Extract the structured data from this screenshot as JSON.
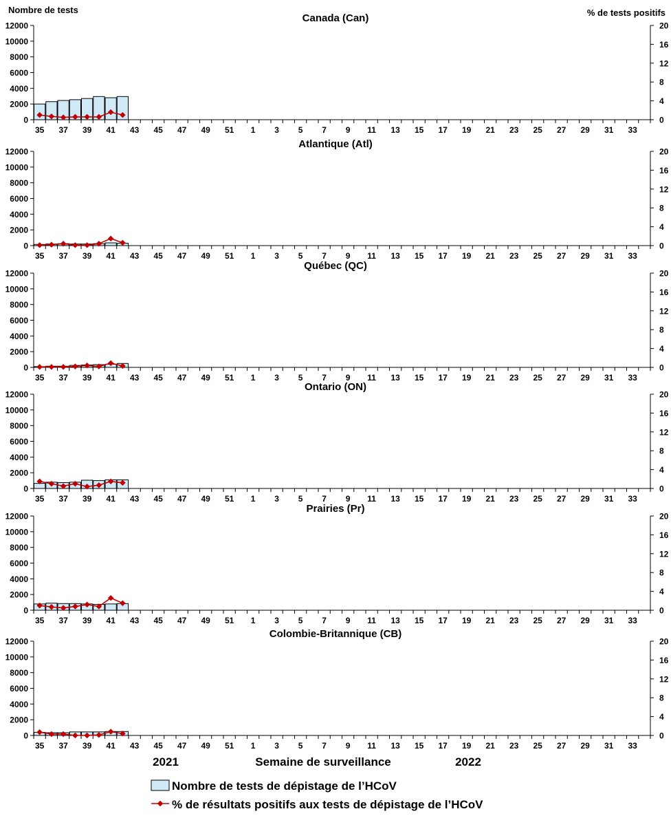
{
  "labels": {
    "left_axis": "Nombre de tests",
    "right_axis": "% de tests positifs",
    "x_axis_title": "Semaine de surveillance",
    "year_left": "2021",
    "year_right": "2022"
  },
  "legend": {
    "bars": "Nombre de tests de dépistage de l’HCoV",
    "line": "% de résultats positifs aux tests de dépistage de l’HCoV"
  },
  "colors": {
    "bar_fill": "#cfe9f7",
    "bar_stroke": "#000000",
    "line": "#c00000",
    "axis": "#000000"
  },
  "chart_data": [
    {
      "type": "bar",
      "title": "Canada (Can)",
      "weeks": [
        35,
        36,
        37,
        38,
        39,
        40,
        41,
        42,
        43,
        44,
        45,
        46,
        47,
        48,
        49,
        50,
        51,
        52,
        1,
        2,
        3,
        4,
        5,
        6,
        7,
        8,
        9,
        10,
        11,
        12,
        13,
        14,
        15,
        16,
        17,
        18,
        19,
        20,
        21,
        22,
        23,
        24,
        25,
        26,
        27,
        28,
        29,
        30,
        31,
        32,
        33,
        34
      ],
      "x_tick_labels": [
        "35",
        "37",
        "39",
        "41",
        "43",
        "45",
        "47",
        "49",
        "51",
        "1",
        "3",
        "5",
        "7",
        "9",
        "11",
        "13",
        "15",
        "17",
        "19",
        "21",
        "23",
        "25",
        "27",
        "29",
        "31",
        "33"
      ],
      "ylim_left": [
        0,
        12000
      ],
      "yticks_left": [
        0,
        2000,
        4000,
        6000,
        8000,
        10000,
        12000
      ],
      "ylim_right": [
        0,
        20
      ],
      "yticks_right": [
        0,
        4,
        8,
        12,
        16,
        20
      ],
      "series": [
        {
          "name": "Nombre de tests de dépistage de l’HCoV",
          "type": "bar",
          "values": [
            2000,
            2300,
            2450,
            2550,
            2700,
            2950,
            2800,
            2950
          ]
        },
        {
          "name": "% de résultats positifs aux tests de dépistage de l’HCoV",
          "type": "line",
          "values": [
            1.0,
            0.7,
            0.5,
            0.6,
            0.6,
            0.6,
            1.6,
            1.0
          ]
        }
      ]
    },
    {
      "type": "bar",
      "title": "Atlantique (Atl)",
      "weeks": [
        35,
        36,
        37,
        38,
        39,
        40,
        41,
        42,
        43,
        44,
        45,
        46,
        47,
        48,
        49,
        50,
        51,
        52,
        1,
        2,
        3,
        4,
        5,
        6,
        7,
        8,
        9,
        10,
        11,
        12,
        13,
        14,
        15,
        16,
        17,
        18,
        19,
        20,
        21,
        22,
        23,
        24,
        25,
        26,
        27,
        28,
        29,
        30,
        31,
        32,
        33,
        34
      ],
      "x_tick_labels": [
        "35",
        "37",
        "39",
        "41",
        "43",
        "45",
        "47",
        "49",
        "51",
        "1",
        "3",
        "5",
        "7",
        "9",
        "11",
        "13",
        "15",
        "17",
        "19",
        "21",
        "23",
        "25",
        "27",
        "29",
        "31",
        "33"
      ],
      "ylim_left": [
        0,
        12000
      ],
      "yticks_left": [
        0,
        2000,
        4000,
        6000,
        8000,
        10000,
        12000
      ],
      "ylim_right": [
        0,
        20
      ],
      "yticks_right": [
        0,
        4,
        8,
        12,
        16,
        20
      ],
      "series": [
        {
          "name": "Nombre de tests de dépistage de l’HCoV",
          "type": "bar",
          "values": [
            150,
            200,
            250,
            200,
            200,
            250,
            350,
            300
          ]
        },
        {
          "name": "% de résultats positifs aux tests de dépistage de l’HCoV",
          "type": "line",
          "values": [
            0.1,
            0.2,
            0.4,
            0.1,
            0.1,
            0.4,
            1.5,
            0.6
          ]
        }
      ]
    },
    {
      "type": "bar",
      "title": "Québec (QC)",
      "weeks": [
        35,
        36,
        37,
        38,
        39,
        40,
        41,
        42,
        43,
        44,
        45,
        46,
        47,
        48,
        49,
        50,
        51,
        52,
        1,
        2,
        3,
        4,
        5,
        6,
        7,
        8,
        9,
        10,
        11,
        12,
        13,
        14,
        15,
        16,
        17,
        18,
        19,
        20,
        21,
        22,
        23,
        24,
        25,
        26,
        27,
        28,
        29,
        30,
        31,
        32,
        33,
        34
      ],
      "x_tick_labels": [
        "35",
        "37",
        "39",
        "41",
        "43",
        "45",
        "47",
        "49",
        "51",
        "1",
        "3",
        "5",
        "7",
        "9",
        "11",
        "13",
        "15",
        "17",
        "19",
        "21",
        "23",
        "25",
        "27",
        "29",
        "31",
        "33"
      ],
      "ylim_left": [
        0,
        12000
      ],
      "yticks_left": [
        0,
        2000,
        4000,
        6000,
        8000,
        10000,
        12000
      ],
      "ylim_right": [
        0,
        20
      ],
      "yticks_right": [
        0,
        4,
        8,
        12,
        16,
        20
      ],
      "series": [
        {
          "name": "Nombre de tests de dépistage de l’HCoV",
          "type": "bar",
          "values": [
            100,
            150,
            150,
            250,
            300,
            350,
            400,
            500
          ]
        },
        {
          "name": "% de résultats positifs aux tests de dépistage de l’HCoV",
          "type": "line",
          "values": [
            0.1,
            0.1,
            0.1,
            0.2,
            0.4,
            0.2,
            0.9,
            0.3
          ]
        }
      ]
    },
    {
      "type": "bar",
      "title": "Ontario (ON)",
      "weeks": [
        35,
        36,
        37,
        38,
        39,
        40,
        41,
        42,
        43,
        44,
        45,
        46,
        47,
        48,
        49,
        50,
        51,
        52,
        1,
        2,
        3,
        4,
        5,
        6,
        7,
        8,
        9,
        10,
        11,
        12,
        13,
        14,
        15,
        16,
        17,
        18,
        19,
        20,
        21,
        22,
        23,
        24,
        25,
        26,
        27,
        28,
        29,
        30,
        31,
        32,
        33,
        34
      ],
      "x_tick_labels": [
        "35",
        "37",
        "39",
        "41",
        "43",
        "45",
        "47",
        "49",
        "51",
        "1",
        "3",
        "5",
        "7",
        "9",
        "11",
        "13",
        "15",
        "17",
        "19",
        "21",
        "23",
        "25",
        "27",
        "29",
        "31",
        "33"
      ],
      "ylim_left": [
        0,
        12000
      ],
      "yticks_left": [
        0,
        2000,
        4000,
        6000,
        8000,
        10000,
        12000
      ],
      "ylim_right": [
        0,
        20
      ],
      "yticks_right": [
        0,
        4,
        8,
        12,
        16,
        20
      ],
      "series": [
        {
          "name": "Nombre de tests de dépistage de l’HCoV",
          "type": "bar",
          "values": [
            650,
            800,
            750,
            800,
            1050,
            1000,
            1100,
            1100
          ]
        },
        {
          "name": "% de résultats positifs aux tests de dépistage de l’HCoV",
          "type": "line",
          "values": [
            1.5,
            1.0,
            0.5,
            1.0,
            0.4,
            0.7,
            1.5,
            1.2
          ]
        }
      ]
    },
    {
      "type": "bar",
      "title": "Prairies (Pr)",
      "weeks": [
        35,
        36,
        37,
        38,
        39,
        40,
        41,
        42,
        43,
        44,
        45,
        46,
        47,
        48,
        49,
        50,
        51,
        52,
        1,
        2,
        3,
        4,
        5,
        6,
        7,
        8,
        9,
        10,
        11,
        12,
        13,
        14,
        15,
        16,
        17,
        18,
        19,
        20,
        21,
        22,
        23,
        24,
        25,
        26,
        27,
        28,
        29,
        30,
        31,
        32,
        33,
        34
      ],
      "x_tick_labels": [
        "35",
        "37",
        "39",
        "41",
        "43",
        "45",
        "47",
        "49",
        "51",
        "1",
        "3",
        "5",
        "7",
        "9",
        "11",
        "13",
        "15",
        "17",
        "19",
        "21",
        "23",
        "25",
        "27",
        "29",
        "31",
        "33"
      ],
      "ylim_left": [
        0,
        12000
      ],
      "yticks_left": [
        0,
        2000,
        4000,
        6000,
        8000,
        10000,
        12000
      ],
      "ylim_right": [
        0,
        20
      ],
      "yticks_right": [
        0,
        4,
        8,
        12,
        16,
        20
      ],
      "series": [
        {
          "name": "Nombre de tests de dépistage de l’HCoV",
          "type": "bar",
          "values": [
            800,
            900,
            850,
            850,
            800,
            750,
            800,
            850
          ]
        },
        {
          "name": "% de résultats positifs aux tests de dépistage de l’HCoV",
          "type": "line",
          "values": [
            1.0,
            0.7,
            0.5,
            0.8,
            1.2,
            0.8,
            2.6,
            1.5
          ]
        }
      ]
    },
    {
      "type": "bar",
      "title": "Colombie-Britannique (CB)",
      "weeks": [
        35,
        36,
        37,
        38,
        39,
        40,
        41,
        42,
        43,
        44,
        45,
        46,
        47,
        48,
        49,
        50,
        51,
        52,
        1,
        2,
        3,
        4,
        5,
        6,
        7,
        8,
        9,
        10,
        11,
        12,
        13,
        14,
        15,
        16,
        17,
        18,
        19,
        20,
        21,
        22,
        23,
        24,
        25,
        26,
        27,
        28,
        29,
        30,
        31,
        32,
        33,
        34
      ],
      "x_tick_labels": [
        "35",
        "37",
        "39",
        "41",
        "43",
        "45",
        "47",
        "49",
        "51",
        "1",
        "3",
        "5",
        "7",
        "9",
        "11",
        "13",
        "15",
        "17",
        "19",
        "21",
        "23",
        "25",
        "27",
        "29",
        "31",
        "33"
      ],
      "ylim_left": [
        0,
        12000
      ],
      "yticks_left": [
        0,
        2000,
        4000,
        6000,
        8000,
        10000,
        12000
      ],
      "ylim_right": [
        0,
        20
      ],
      "yticks_right": [
        0,
        4,
        8,
        12,
        16,
        20
      ],
      "series": [
        {
          "name": "Nombre de tests de dépistage de l’HCoV",
          "type": "bar",
          "values": [
            400,
            350,
            350,
            450,
            450,
            450,
            500,
            500
          ]
        },
        {
          "name": "% de résultats positifs aux tests de dépistage de l’HCoV",
          "type": "line",
          "values": [
            0.7,
            0.3,
            0.3,
            0.0,
            0.0,
            0.1,
            0.8,
            0.4
          ]
        }
      ]
    }
  ]
}
